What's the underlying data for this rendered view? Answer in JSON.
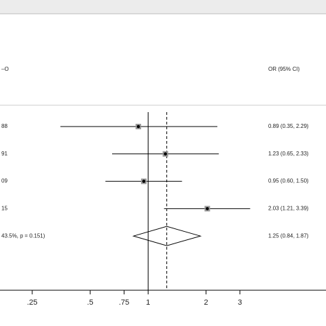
{
  "chart_data": {
    "type": "forest",
    "column_headers": [
      "–O",
      "OR (95% CI)"
    ],
    "categories": [
      "88",
      "91",
      "09",
      "15",
      "43.5%, p = 0.151)"
    ],
    "values": [
      0.89,
      1.23,
      0.95,
      2.03,
      1.25
    ],
    "lower": [
      0.35,
      0.65,
      0.6,
      1.21,
      0.84
    ],
    "upper": [
      2.29,
      2.33,
      1.5,
      3.39,
      1.87
    ],
    "value_labels": [
      "0.89 (0.35, 2.29)",
      "1.23 (0.65, 2.33)",
      "0.95 (0.60, 1.50)",
      "2.03 (1.21, 3.39)",
      "1.25 (0.84, 1.87)"
    ],
    "reference_line": 1,
    "log_scale": true,
    "xlim": [
      0.17,
      8.4
    ],
    "xticks": [
      {
        "value": 0.25,
        "label": ".25"
      },
      {
        "value": 0.5,
        "label": ".5"
      },
      {
        "value": 0.75,
        "label": ".75"
      },
      1,
      2,
      3
    ],
    "color": "#000000"
  }
}
